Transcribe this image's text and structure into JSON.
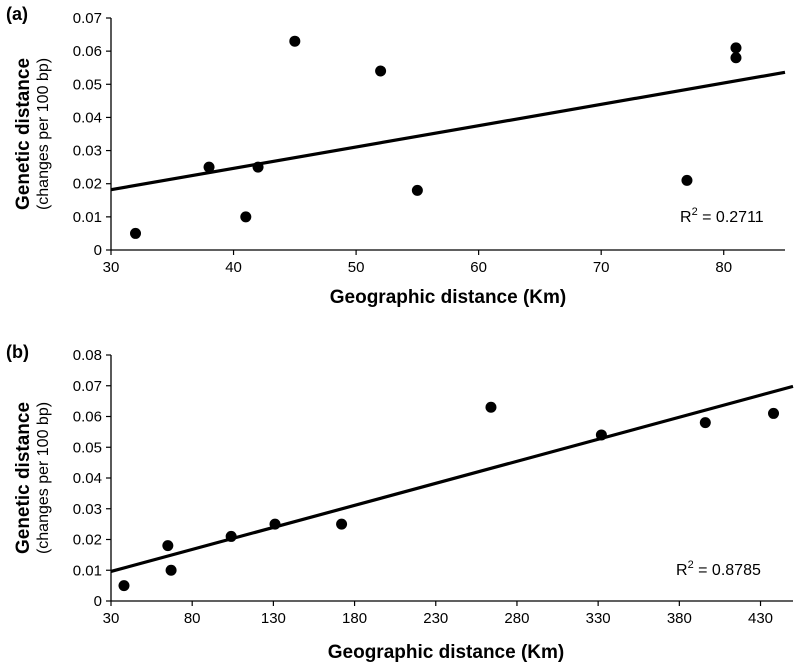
{
  "chart_data": [
    {
      "type": "scatter",
      "panel_label": "(a)",
      "xlabel": "Geographic distance (Km)",
      "ylabel": "Genetic distance",
      "ylabel_sub": "(changes per 100 bp)",
      "xlim": [
        30,
        85
      ],
      "ylim": [
        0,
        0.07
      ],
      "xticks": [
        30,
        40,
        50,
        60,
        70,
        80
      ],
      "yticks": [
        0,
        0.01,
        0.02,
        0.03,
        0.04,
        0.05,
        0.06,
        0.07
      ],
      "points": [
        {
          "x": 32,
          "y": 0.005
        },
        {
          "x": 38,
          "y": 0.025
        },
        {
          "x": 41,
          "y": 0.01
        },
        {
          "x": 42,
          "y": 0.025
        },
        {
          "x": 45,
          "y": 0.063
        },
        {
          "x": 52,
          "y": 0.054
        },
        {
          "x": 55,
          "y": 0.018
        },
        {
          "x": 77,
          "y": 0.021
        },
        {
          "x": 81,
          "y": 0.061
        },
        {
          "x": 81,
          "y": 0.058
        }
      ],
      "trendline": {
        "x": [
          30,
          85
        ],
        "y": [
          0.0182,
          0.0536
        ]
      },
      "r2_label": "R",
      "r2_sup": "2",
      "r2_text": " = 0.2711",
      "grid": false
    },
    {
      "type": "scatter",
      "panel_label": "(b)",
      "xlabel": "Geographic distance (Km)",
      "ylabel": "Genetic distance",
      "ylabel_sub": "(changes per 100 bp)",
      "xlim": [
        30,
        450
      ],
      "ylim": [
        0,
        0.08
      ],
      "xticks": [
        30,
        80,
        130,
        180,
        230,
        280,
        330,
        380,
        430
      ],
      "yticks": [
        0,
        0.01,
        0.02,
        0.03,
        0.04,
        0.05,
        0.06,
        0.07,
        0.08
      ],
      "points": [
        {
          "x": 38,
          "y": 0.005
        },
        {
          "x": 65,
          "y": 0.018
        },
        {
          "x": 67,
          "y": 0.01
        },
        {
          "x": 104,
          "y": 0.021
        },
        {
          "x": 131,
          "y": 0.025
        },
        {
          "x": 172,
          "y": 0.025
        },
        {
          "x": 264,
          "y": 0.063
        },
        {
          "x": 332,
          "y": 0.054
        },
        {
          "x": 396,
          "y": 0.058
        },
        {
          "x": 438,
          "y": 0.061
        }
      ],
      "trendline": {
        "x": [
          30,
          450
        ],
        "y": [
          0.0096,
          0.0698
        ]
      },
      "r2_label": "R",
      "r2_sup": "2",
      "r2_text": " = 0.8785",
      "grid": false
    }
  ]
}
